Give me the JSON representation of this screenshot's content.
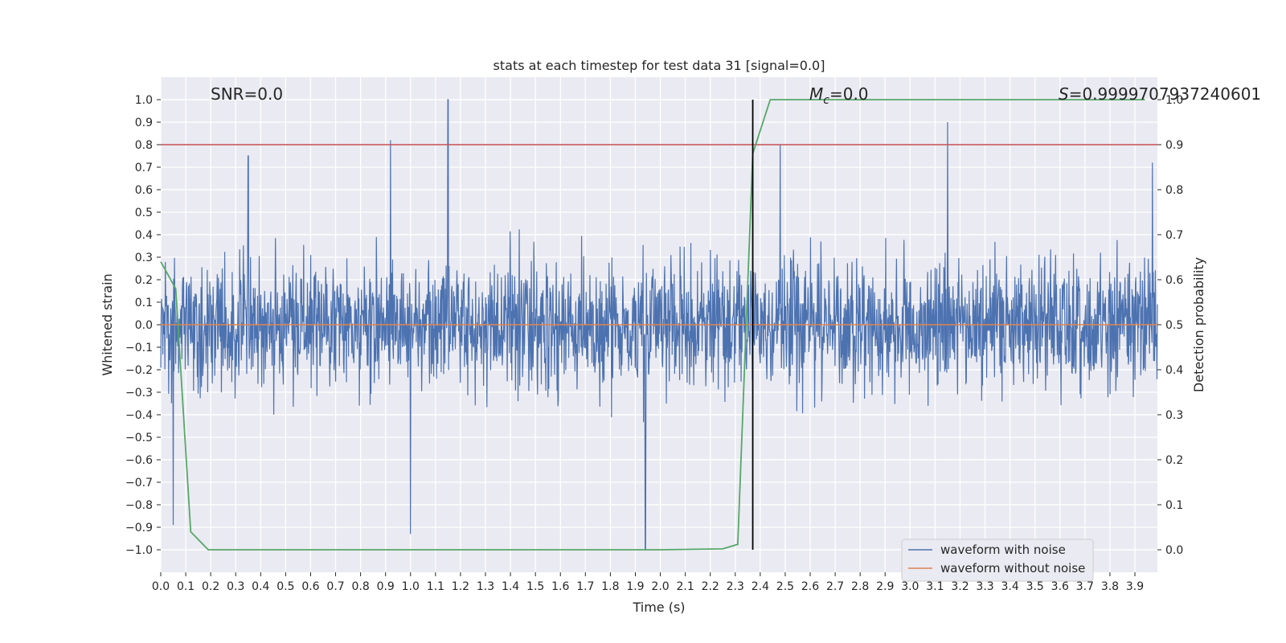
{
  "chart_data": {
    "type": "line",
    "title": "stats at each timestep for test data 31 [signal=0.0]",
    "xlabel": "Time (s)",
    "ylabel": "Whitened strain",
    "y2label": "Detection probability",
    "xlim": [
      0.0,
      3.99
    ],
    "ylim": [
      -1.1,
      1.1
    ],
    "y2lim": [
      -0.05,
      1.05
    ],
    "x_ticks": [
      0.0,
      0.1,
      0.2,
      0.3,
      0.4,
      0.5,
      0.6,
      0.7,
      0.8,
      0.9,
      1.0,
      1.1,
      1.2,
      1.3,
      1.4,
      1.5,
      1.6,
      1.7,
      1.8,
      1.9,
      2.0,
      2.1,
      2.2,
      2.3,
      2.4,
      2.5,
      2.6,
      2.7,
      2.8,
      2.9,
      3.0,
      3.1,
      3.2,
      3.3,
      3.4,
      3.5,
      3.6,
      3.7,
      3.8,
      3.9
    ],
    "x_tick_labels": [
      "0.0",
      "0.1",
      "0.2",
      "0.3",
      "0.4",
      "0.5",
      "0.6",
      "0.7",
      "0.8",
      "0.9",
      "1.0",
      "1.1",
      "1.2",
      "1.3",
      "1.4",
      "1.5",
      "1.6",
      "1.7",
      "1.8",
      "1.9",
      "2.0",
      "2.1",
      "2.2",
      "2.3",
      "2.4",
      "2.5",
      "2.6",
      "2.7",
      "2.8",
      "2.9",
      "3.0",
      "3.1",
      "3.2",
      "3.3",
      "3.4",
      "3.5",
      "3.6",
      "3.7",
      "3.8",
      "3.9"
    ],
    "y_ticks": [
      -1.0,
      -0.9,
      -0.8,
      -0.7,
      -0.6,
      -0.5,
      -0.4,
      -0.3,
      -0.2,
      -0.1,
      0.0,
      0.1,
      0.2,
      0.3,
      0.4,
      0.5,
      0.6,
      0.7,
      0.8,
      0.9,
      1.0
    ],
    "y_tick_labels": [
      "−1.0",
      "−0.9",
      "−0.8",
      "−0.7",
      "−0.6",
      "−0.5",
      "−0.4",
      "−0.3",
      "−0.2",
      "−0.1",
      "0.0",
      "0.1",
      "0.2",
      "0.3",
      "0.4",
      "0.5",
      "0.6",
      "0.7",
      "0.8",
      "0.9",
      "1.0"
    ],
    "y2_ticks": [
      0.0,
      0.1,
      0.2,
      0.3,
      0.4,
      0.5,
      0.6,
      0.7,
      0.8,
      0.9,
      1.0
    ],
    "y2_tick_labels": [
      "0.0",
      "0.1",
      "0.2",
      "0.3",
      "0.4",
      "0.5",
      "0.6",
      "0.7",
      "0.8",
      "0.9",
      "1.0"
    ],
    "annotations": {
      "snr": "SNR=0.0",
      "mc": "=0.0",
      "mc_symbol": "M",
      "mc_subscript": "c",
      "s": "=0.9999707937240601",
      "s_symbol": "S"
    },
    "threshold_line": {
      "y2": 0.9,
      "color": "#c44e52"
    },
    "vertical_marker": {
      "x": 2.37,
      "color": "#000000"
    },
    "series": [
      {
        "name": "waveform with noise",
        "color": "#4c72b0",
        "axis": "left",
        "note": "whitened strain noise, 4096 samples, amplitude roughly within ±0.6 with spikes near 1.0 and -1.0",
        "peaks": [
          {
            "x": 0.92,
            "y": 0.82
          },
          {
            "x": 1.15,
            "y": 1.0
          },
          {
            "x": 1.94,
            "y": -1.0
          },
          {
            "x": 3.15,
            "y": 0.9
          },
          {
            "x": 0.05,
            "y": -0.89
          },
          {
            "x": 1.0,
            "y": -0.93
          },
          {
            "x": 2.48,
            "y": 0.8
          },
          {
            "x": 0.35,
            "y": 0.75
          },
          {
            "x": 3.97,
            "y": 0.72
          }
        ]
      },
      {
        "name": "waveform without noise",
        "color": "#dd8452",
        "axis": "left",
        "x": [
          0.0,
          3.99
        ],
        "y": [
          0.0,
          0.0
        ]
      },
      {
        "name": "detection probability",
        "color": "#55a868",
        "axis": "right",
        "x": [
          0.0,
          0.06,
          0.12,
          0.19,
          0.25,
          0.5,
          1.0,
          1.5,
          2.0,
          2.25,
          2.31,
          2.37,
          2.44,
          2.5,
          3.0,
          3.5,
          3.94
        ],
        "y": [
          0.64,
          0.58,
          0.04,
          0.0,
          0.0,
          0.0,
          0.0,
          0.0,
          0.0,
          0.002,
          0.012,
          0.88,
          1.0,
          1.0,
          1.0,
          1.0,
          1.0
        ]
      }
    ],
    "legend": {
      "placement": "lower-right",
      "entries": [
        {
          "label": "waveform with noise",
          "color": "#4c72b0"
        },
        {
          "label": "waveform without noise",
          "color": "#dd8452"
        }
      ]
    },
    "background": "#eaeaf2",
    "grid": true
  }
}
